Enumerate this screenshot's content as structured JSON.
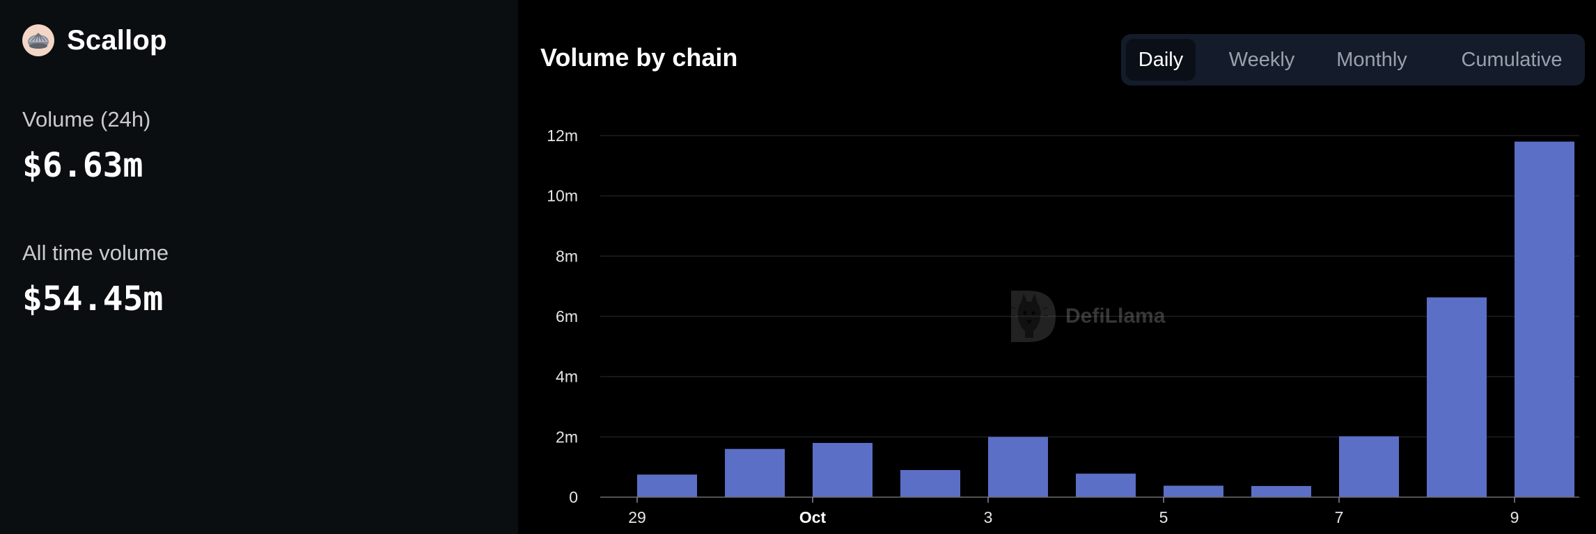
{
  "protocol": {
    "name": "Scallop",
    "logo_icon": "scallop-shell-logo"
  },
  "stats": {
    "volume_24h_label": "Volume (24h)",
    "volume_24h_value": "$6.63m",
    "all_time_label": "All time volume",
    "all_time_value": "$54.45m"
  },
  "chart_header": {
    "title": "Volume by chain",
    "tabs": [
      {
        "label": "Daily",
        "active": true
      },
      {
        "label": "Weekly",
        "active": false
      },
      {
        "label": "Monthly",
        "active": false
      },
      {
        "label": "Cumulative",
        "active": false
      }
    ]
  },
  "watermark": {
    "text": "DefiLlama",
    "icon": "defillama-llama-icon"
  },
  "colors": {
    "bar": "#5c6fc6",
    "grid": "#1d1f23",
    "left_panel_bg": "#0b0e11",
    "tabs_bg": "#141c2b"
  },
  "chart_data": {
    "type": "bar",
    "title": "Volume by chain",
    "categories": [
      "Sep 29",
      "Sep 30",
      "Oct 1",
      "Oct 2",
      "Oct 3",
      "Oct 4",
      "Oct 5",
      "Oct 6",
      "Oct 7",
      "Oct 8",
      "Oct 9"
    ],
    "values": [
      0.75,
      1.6,
      1.8,
      0.9,
      2.0,
      0.78,
      0.38,
      0.37,
      2.02,
      6.63,
      11.8
    ],
    "unit": "m",
    "y_ticks": [
      "0",
      "2m",
      "4m",
      "6m",
      "8m",
      "10m",
      "12m"
    ],
    "x_ticks": [
      {
        "label": "29",
        "index": 0,
        "bold": false
      },
      {
        "label": "Oct",
        "index": 2,
        "bold": true
      },
      {
        "label": "3",
        "index": 4,
        "bold": false
      },
      {
        "label": "5",
        "index": 6,
        "bold": false
      },
      {
        "label": "7",
        "index": 8,
        "bold": false
      },
      {
        "label": "9",
        "index": 10,
        "bold": false
      }
    ],
    "ylim": [
      0,
      12
    ],
    "grid": true,
    "legend": "none"
  }
}
